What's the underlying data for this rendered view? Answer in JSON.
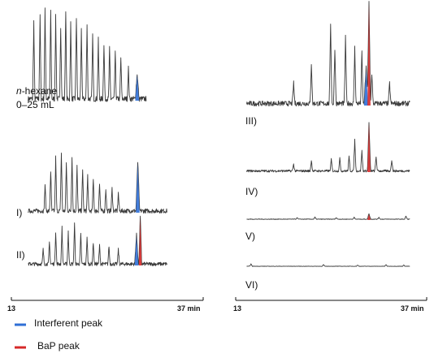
{
  "chart_data": {
    "type": "line",
    "title": "",
    "xlabel": "",
    "ylabel": "",
    "x_unit": "min",
    "xlim": [
      13,
      37
    ],
    "x_tick_labels": [
      "13",
      "37 min"
    ],
    "annotation": {
      "italic_part": "n",
      "line1_rest": "-hexane",
      "line2": "0–25 mL"
    },
    "legend": [
      {
        "name": "Interferent peak",
        "color": "#2f6fd6"
      },
      {
        "name": "BaP peak",
        "color": "#d62828"
      }
    ],
    "panels": [
      {
        "label": "",
        "column": "left",
        "peaks": [
          [
            14.5,
            0.85
          ],
          [
            15.5,
            0.9
          ],
          [
            16.3,
            1.0
          ],
          [
            17.2,
            0.95
          ],
          [
            18.0,
            0.9
          ],
          [
            18.8,
            0.8
          ],
          [
            19.6,
            0.95
          ],
          [
            20.4,
            0.85
          ],
          [
            21.3,
            0.9
          ],
          [
            22.1,
            0.75
          ],
          [
            23.0,
            0.8
          ],
          [
            23.9,
            0.7
          ],
          [
            24.8,
            0.65
          ],
          [
            25.7,
            0.6
          ],
          [
            26.6,
            0.55
          ],
          [
            27.5,
            0.5
          ],
          [
            28.4,
            0.45
          ],
          [
            29.6,
            0.35
          ]
        ],
        "interferent": {
          "x": 31.0,
          "height": 0.28
        },
        "bap": null,
        "noise": 0.06
      },
      {
        "label": "I)",
        "column": "left",
        "peaks": [
          [
            16.3,
            0.3
          ],
          [
            17.2,
            0.45
          ],
          [
            18.0,
            0.6
          ],
          [
            18.9,
            0.65
          ],
          [
            19.7,
            0.55
          ],
          [
            20.6,
            0.6
          ],
          [
            21.4,
            0.5
          ],
          [
            22.3,
            0.45
          ],
          [
            23.1,
            0.4
          ],
          [
            24.0,
            0.35
          ],
          [
            25.0,
            0.3
          ],
          [
            26.0,
            0.25
          ],
          [
            27.0,
            0.25
          ],
          [
            28.0,
            0.2
          ]
        ],
        "interferent": {
          "x": 31.1,
          "height": 0.55
        },
        "bap": null,
        "noise": 0.05
      },
      {
        "label": "II)",
        "column": "left",
        "peaks": [
          [
            16.0,
            0.2
          ],
          [
            17.0,
            0.3
          ],
          [
            18.0,
            0.45
          ],
          [
            19.0,
            0.5
          ],
          [
            20.0,
            0.45
          ],
          [
            21.0,
            0.55
          ],
          [
            22.0,
            0.4
          ],
          [
            23.0,
            0.35
          ],
          [
            24.0,
            0.3
          ],
          [
            25.0,
            0.25
          ],
          [
            26.5,
            0.25
          ],
          [
            28.0,
            0.2
          ]
        ],
        "interferent": {
          "x": 30.9,
          "height": 0.4
        },
        "bap": {
          "x": 31.5,
          "height": 0.65
        },
        "noise": 0.05
      },
      {
        "label": "III)",
        "column": "right",
        "peaks": [
          [
            20.0,
            0.2
          ],
          [
            22.5,
            0.4
          ],
          [
            25.2,
            0.8
          ],
          [
            25.8,
            0.55
          ],
          [
            27.3,
            0.65
          ],
          [
            28.6,
            0.55
          ],
          [
            29.6,
            0.5
          ],
          [
            31.0,
            0.3
          ],
          [
            33.5,
            0.2
          ]
        ],
        "interferent": {
          "x": 30.2,
          "height": 0.35
        },
        "bap": {
          "x": 30.6,
          "height": 1.0
        },
        "noise": 0.05
      },
      {
        "label": "IV)",
        "column": "right",
        "peaks": [
          [
            20.0,
            0.12
          ],
          [
            22.5,
            0.18
          ],
          [
            25.3,
            0.2
          ],
          [
            26.5,
            0.22
          ],
          [
            27.8,
            0.25
          ],
          [
            28.6,
            0.55
          ],
          [
            29.6,
            0.35
          ],
          [
            31.6,
            0.25
          ],
          [
            33.8,
            0.2
          ]
        ],
        "interferent": null,
        "bap": {
          "x": 30.6,
          "height": 0.85
        },
        "noise": 0.04
      },
      {
        "label": "V)",
        "column": "right",
        "peaks": [
          [
            20.5,
            0.04
          ],
          [
            23.0,
            0.05
          ],
          [
            26.0,
            0.04
          ],
          [
            28.5,
            0.05
          ],
          [
            32.0,
            0.05
          ],
          [
            35.8,
            0.08
          ]
        ],
        "interferent": null,
        "bap": {
          "x": 30.6,
          "height": 0.14
        },
        "noise": 0.015
      },
      {
        "label": "VI)",
        "column": "right",
        "peaks": [
          [
            14.0,
            0.06
          ],
          [
            24.2,
            0.04
          ],
          [
            29.0,
            0.03
          ],
          [
            33.0,
            0.04
          ],
          [
            35.5,
            0.03
          ]
        ],
        "interferent": null,
        "bap": null,
        "noise": 0.01
      }
    ]
  }
}
